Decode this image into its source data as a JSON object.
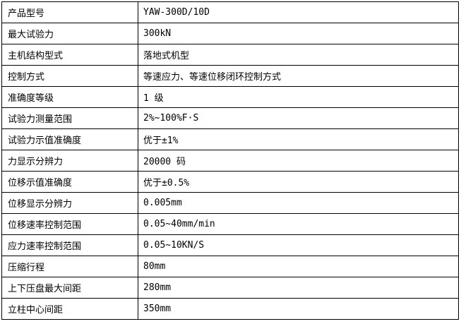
{
  "colors": {
    "background": "#ffffff",
    "border": "#000000",
    "text": "#000000"
  },
  "table": {
    "rows": [
      {
        "label": "产品型号",
        "value": "YAW-300D/10D"
      },
      {
        "label": "最大试验力",
        "value": "300kN"
      },
      {
        "label": "主机结构型式",
        "value": "落地式机型"
      },
      {
        "label": "控制方式",
        "value": "等速应力、等速位移闭环控制方式"
      },
      {
        "label": "准确度等级",
        "value": "1 级"
      },
      {
        "label": "试验力测量范围",
        "value": "2%~100%F·S"
      },
      {
        "label": "试验力示值准确度",
        "value": "优于±1%"
      },
      {
        "label": "力显示分辨力",
        "value": "20000 码"
      },
      {
        "label": "位移示值准确度",
        "value": "优于±0.5%"
      },
      {
        "label": "位移显示分辨力",
        "value": "0.005mm"
      },
      {
        "label": "位移速率控制范围",
        "value": "0.05~40mm/min"
      },
      {
        "label": "应力速率控制范围",
        "value": "0.05~10KN/S"
      },
      {
        "label": "压缩行程",
        "value": "80mm"
      },
      {
        "label": "上下压盘最大间距",
        "value": "280mm"
      },
      {
        "label": "立柱中心间距",
        "value": "350mm"
      }
    ]
  }
}
